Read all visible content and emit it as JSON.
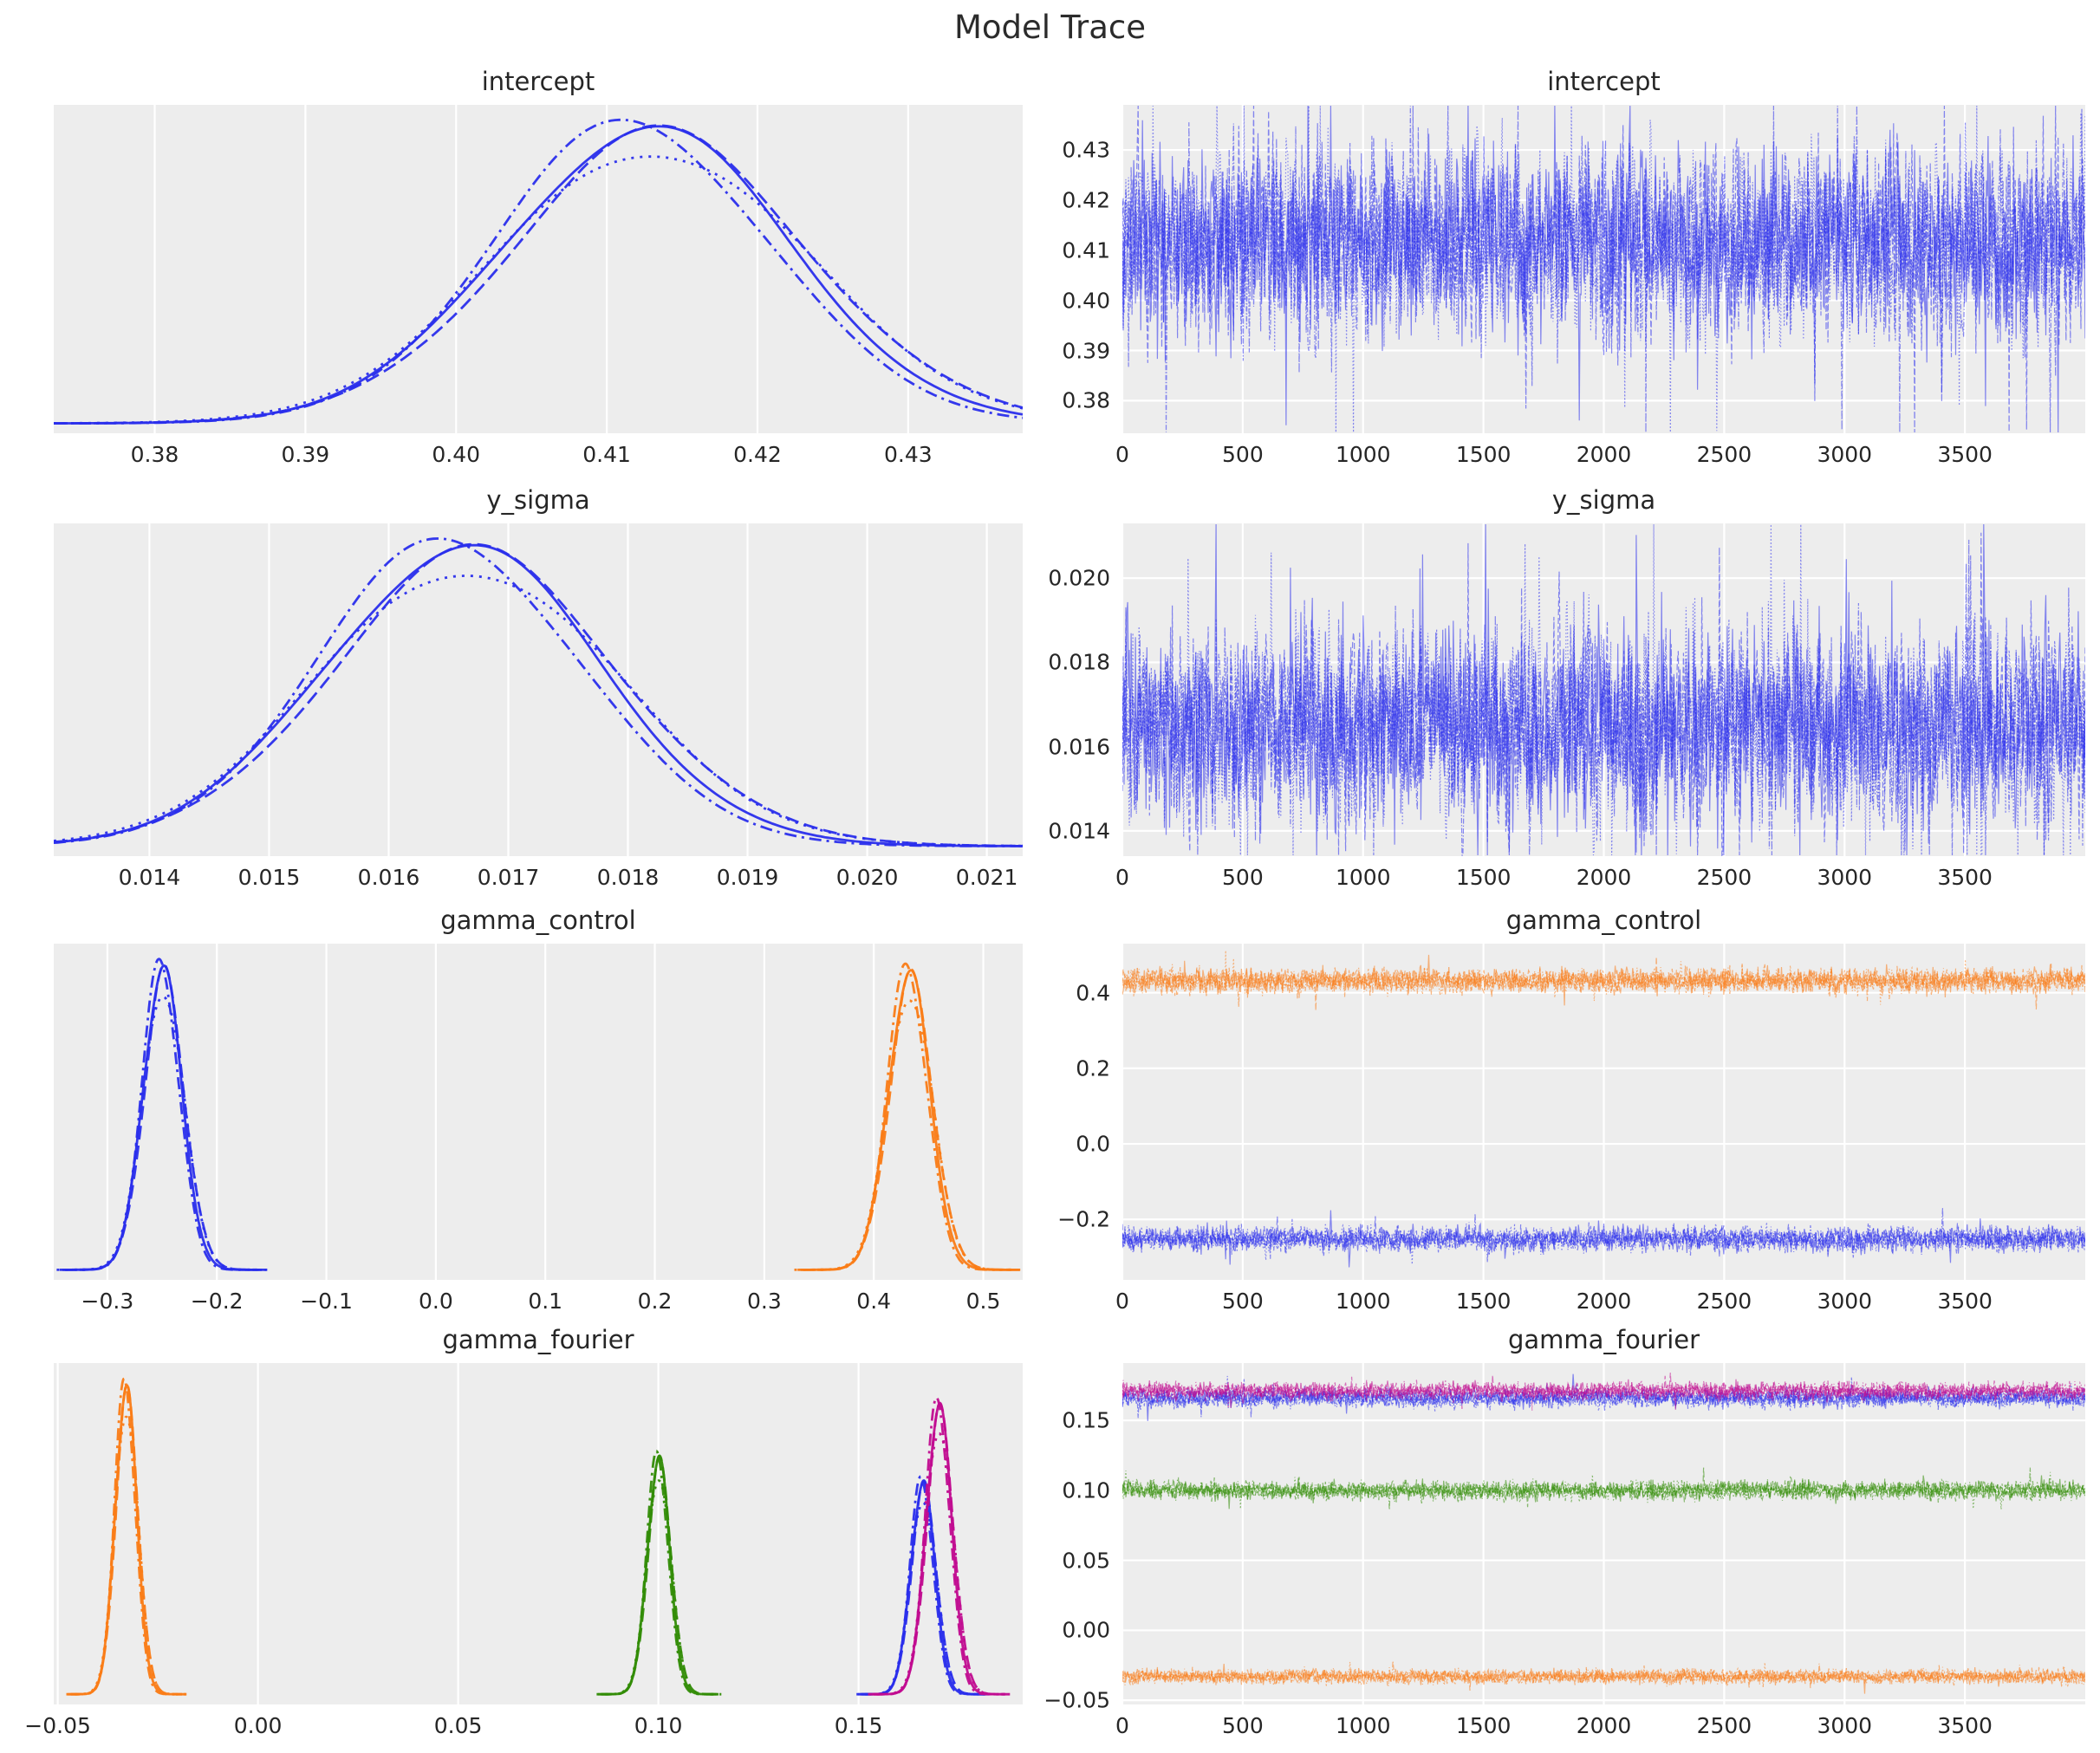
{
  "figure": {
    "title": "Model Trace",
    "background": "#ffffff",
    "axes_background": "#ededed",
    "grid_color": "#ffffff",
    "text_color": "#262626",
    "palette": {
      "blue": "#2a2eec",
      "orange": "#fa7c17",
      "green": "#328c06",
      "magenta": "#c10c90"
    }
  },
  "chart_data": [
    {
      "id": "intercept-density",
      "type": "kde",
      "row": 0,
      "col": 0,
      "title": "intercept",
      "n_chains": 4,
      "xlim": [
        0.3733,
        0.4376
      ],
      "xticks": [
        0.38,
        0.39,
        0.4,
        0.41,
        0.42,
        0.43
      ],
      "xtick_labels": [
        "0.38",
        "0.39",
        "0.40",
        "0.41",
        "0.42",
        "0.43"
      ],
      "series": [
        {
          "name": "intercept",
          "color": "blue",
          "mean": 0.4125,
          "sd": 0.0095,
          "height": 1.0,
          "baseline": "full"
        }
      ]
    },
    {
      "id": "intercept-trace",
      "type": "trace",
      "row": 0,
      "col": 1,
      "title": "intercept",
      "n_chains": 4,
      "draws": 4000,
      "xlim": [
        0,
        4000
      ],
      "ylim": [
        0.3735,
        0.439
      ],
      "xticks": [
        0,
        500,
        1000,
        1500,
        2000,
        2500,
        3000,
        3500
      ],
      "xtick_labels": [
        "0",
        "500",
        "1000",
        "1500",
        "2000",
        "2500",
        "3000",
        "3500"
      ],
      "yticks": [
        0.43,
        0.42,
        0.41,
        0.4,
        0.39,
        0.38
      ],
      "ytick_labels": [
        "0.43",
        "0.42",
        "0.41",
        "0.40",
        "0.39",
        "0.38"
      ],
      "series": [
        {
          "name": "intercept",
          "color": "blue",
          "mean": 0.4118,
          "sd": 0.0092,
          "spike": 0.05
        }
      ]
    },
    {
      "id": "y-sigma-density",
      "type": "kde",
      "row": 1,
      "col": 0,
      "title": "y_sigma",
      "n_chains": 4,
      "xlim": [
        0.0132,
        0.0213
      ],
      "xticks": [
        0.014,
        0.015,
        0.016,
        0.017,
        0.018,
        0.019,
        0.02,
        0.021
      ],
      "xtick_labels": [
        "0.014",
        "0.015",
        "0.016",
        "0.017",
        "0.018",
        "0.019",
        "0.020",
        "0.021"
      ],
      "series": [
        {
          "name": "y_sigma",
          "color": "blue",
          "mean": 0.0166,
          "sd": 0.00115,
          "height": 1.0,
          "baseline": "full"
        }
      ]
    },
    {
      "id": "y-sigma-trace",
      "type": "trace",
      "row": 1,
      "col": 1,
      "title": "y_sigma",
      "n_chains": 4,
      "draws": 4000,
      "xlim": [
        0,
        4000
      ],
      "ylim": [
        0.0134,
        0.0213
      ],
      "xticks": [
        0,
        500,
        1000,
        1500,
        2000,
        2500,
        3000,
        3500
      ],
      "xtick_labels": [
        "0",
        "500",
        "1000",
        "1500",
        "2000",
        "2500",
        "3000",
        "3500"
      ],
      "yticks": [
        0.02,
        0.018,
        0.016,
        0.014
      ],
      "ytick_labels": [
        "0.020",
        "0.018",
        "0.016",
        "0.014"
      ],
      "series": [
        {
          "name": "y_sigma",
          "color": "blue",
          "mean": 0.0165,
          "sd": 0.00112,
          "spike": 0.06
        }
      ]
    },
    {
      "id": "gamma-control-density",
      "type": "kde",
      "row": 2,
      "col": 0,
      "title": "gamma_control",
      "n_chains": 4,
      "xlim": [
        -0.349,
        0.536
      ],
      "xticks": [
        -0.3,
        -0.2,
        -0.1,
        0.0,
        0.1,
        0.2,
        0.3,
        0.4,
        0.5
      ],
      "xtick_labels": [
        "−0.3",
        "−0.2",
        "−0.1",
        "0.0",
        "0.1",
        "0.2",
        "0.3",
        "0.4",
        "0.5"
      ],
      "series": [
        {
          "name": "gamma_control[0]",
          "color": "blue",
          "mean": -0.25,
          "sd": 0.0175,
          "height": 1.0,
          "baseline": "local"
        },
        {
          "name": "gamma_control[1]",
          "color": "orange",
          "mean": 0.432,
          "sd": 0.019,
          "height": 0.985,
          "baseline": "local"
        }
      ]
    },
    {
      "id": "gamma-control-trace",
      "type": "trace",
      "row": 2,
      "col": 1,
      "title": "gamma_control",
      "n_chains": 4,
      "draws": 4000,
      "xlim": [
        0,
        4000
      ],
      "ylim": [
        -0.36,
        0.53
      ],
      "xticks": [
        0,
        500,
        1000,
        1500,
        2000,
        2500,
        3000,
        3500
      ],
      "xtick_labels": [
        "0",
        "500",
        "1000",
        "1500",
        "2000",
        "2500",
        "3000",
        "3500"
      ],
      "yticks": [
        0.4,
        0.2,
        0.0,
        -0.2
      ],
      "ytick_labels": [
        "0.4",
        "0.2",
        "0.0",
        "−0.2"
      ],
      "series": [
        {
          "name": "gamma_control[0]",
          "color": "blue",
          "mean": -0.252,
          "sd": 0.016,
          "spike": 0.02
        },
        {
          "name": "gamma_control[1]",
          "color": "orange",
          "mean": 0.432,
          "sd": 0.016,
          "spike": 0.02
        }
      ]
    },
    {
      "id": "gamma-fourier-density",
      "type": "kde",
      "row": 3,
      "col": 0,
      "title": "gamma_fourier",
      "n_chains": 4,
      "xlim": [
        -0.051,
        0.191
      ],
      "xticks": [
        -0.05,
        0.0,
        0.05,
        0.1,
        0.15
      ],
      "xtick_labels": [
        "−0.05",
        "0.00",
        "0.05",
        "0.10",
        "0.15"
      ],
      "series": [
        {
          "name": "gamma_fourier[0]",
          "color": "orange",
          "mean": -0.033,
          "sd": 0.0027,
          "height": 1.0,
          "baseline": "local"
        },
        {
          "name": "gamma_fourier[1]",
          "color": "green",
          "mean": 0.1,
          "sd": 0.0028,
          "height": 0.77,
          "baseline": "local"
        },
        {
          "name": "gamma_fourier[2]",
          "color": "blue",
          "mean": 0.166,
          "sd": 0.003,
          "height": 0.69,
          "baseline": "local"
        },
        {
          "name": "gamma_fourier[3]",
          "color": "magenta",
          "mean": 0.17,
          "sd": 0.0032,
          "height": 0.94,
          "baseline": "local"
        }
      ]
    },
    {
      "id": "gamma-fourier-trace",
      "type": "trace",
      "row": 3,
      "col": 1,
      "title": "gamma_fourier",
      "n_chains": 4,
      "draws": 4000,
      "xlim": [
        0,
        4000
      ],
      "ylim": [
        -0.053,
        0.191
      ],
      "xticks": [
        0,
        500,
        1000,
        1500,
        2000,
        2500,
        3000,
        3500
      ],
      "xtick_labels": [
        "0",
        "500",
        "1000",
        "1500",
        "2000",
        "2500",
        "3000",
        "3500"
      ],
      "yticks": [
        0.15,
        0.1,
        0.05,
        0.0,
        -0.05
      ],
      "ytick_labels": [
        "0.15",
        "0.10",
        "0.05",
        "0.00",
        "−0.05"
      ],
      "series": [
        {
          "name": "gamma_fourier[0]",
          "color": "orange",
          "mean": -0.033,
          "sd": 0.0025,
          "spike": 0.015
        },
        {
          "name": "gamma_fourier[1]",
          "color": "green",
          "mean": 0.1,
          "sd": 0.0032,
          "spike": 0.015
        },
        {
          "name": "gamma_fourier[2]",
          "color": "blue",
          "mean": 0.166,
          "sd": 0.0032,
          "spike": 0.015
        },
        {
          "name": "gamma_fourier[3]",
          "color": "magenta",
          "mean": 0.171,
          "sd": 0.003,
          "spike": 0.015
        }
      ]
    }
  ]
}
